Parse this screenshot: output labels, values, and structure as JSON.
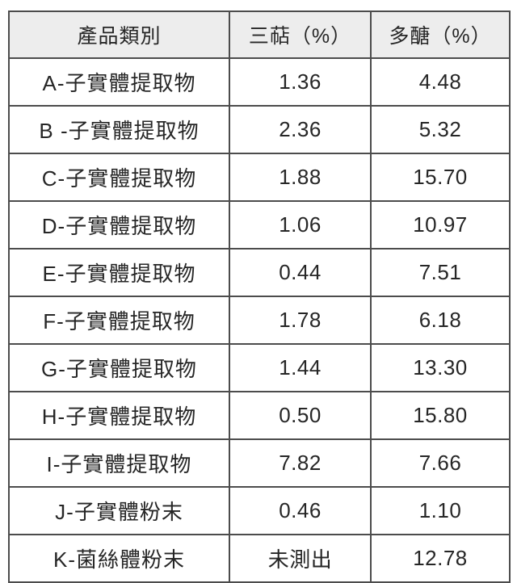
{
  "chart_data": {
    "type": "table",
    "columns": [
      "產品類別",
      "三萜（%）",
      "多醣（%）"
    ],
    "rows": [
      [
        "A-子實體提取物",
        "1.36",
        "4.48"
      ],
      [
        "B -子實體提取物",
        "2.36",
        "5.32"
      ],
      [
        "C-子實體提取物",
        "1.88",
        "15.70"
      ],
      [
        "D-子實體提取物",
        "1.06",
        "10.97"
      ],
      [
        "E-子實體提取物",
        "0.44",
        "7.51"
      ],
      [
        "F-子實體提取物",
        "1.78",
        "6.18"
      ],
      [
        "G-子實體提取物",
        "1.44",
        "13.30"
      ],
      [
        "H-子實體提取物",
        "0.50",
        "15.80"
      ],
      [
        "I-子實體提取物",
        "7.82",
        "7.66"
      ],
      [
        "J-子實體粉末",
        "0.46",
        "1.10"
      ],
      [
        "K-菌絲體粉末",
        "未測出",
        "12.78"
      ]
    ]
  },
  "colors": {
    "page_background": "#ffffff",
    "header_background": "#ededed",
    "grid_border": "#4c4c4c",
    "text": "#262626"
  }
}
